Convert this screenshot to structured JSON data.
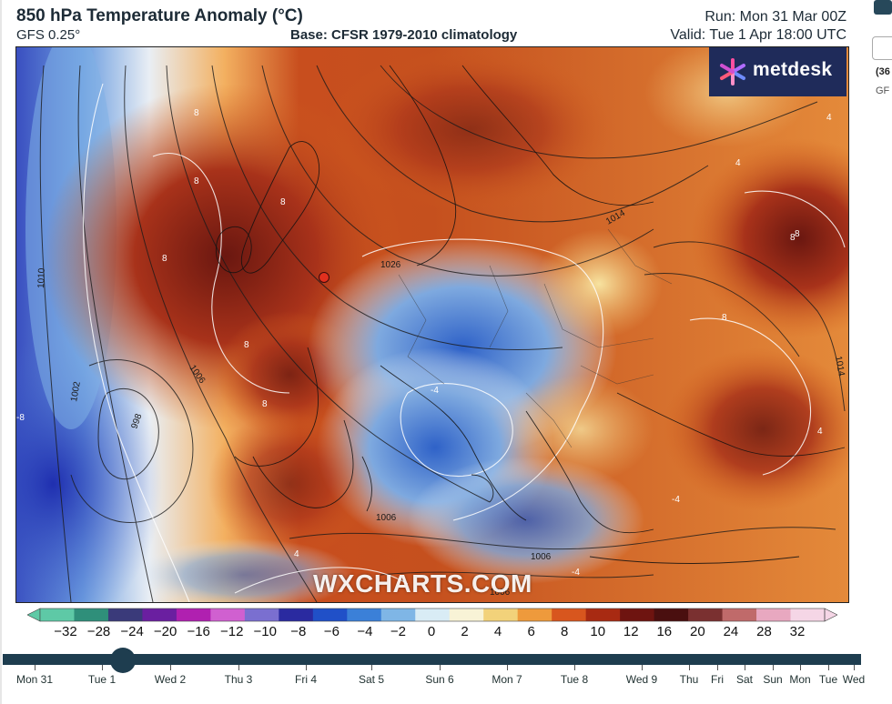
{
  "header": {
    "title": "850 hPa Temperature Anomaly (°C)",
    "model": "GFS 0.25°",
    "base": "Base: CFSR 1979-2010 climatology",
    "run": "Run: Mon 31 Mar 00Z",
    "valid": "Valid: Tue 1 Apr 18:00 UTC"
  },
  "logo": {
    "text": "metdesk",
    "icon": "metdesk-star-icon",
    "color": "#1f2b5a"
  },
  "watermark": "WXCHARTS.COM",
  "map": {
    "isobar_labels": [
      "1010",
      "1002",
      "998",
      "1006",
      "1006",
      "1006",
      "1006",
      "1026",
      "1014",
      "1014"
    ],
    "contour_labels": [
      "8",
      "8",
      "8",
      "8",
      "8",
      "8",
      "8",
      "8",
      "-8",
      "-4",
      "4",
      "4",
      "4",
      "-4",
      "-4",
      "4",
      "8"
    ]
  },
  "scale": {
    "ticks": [
      "−32",
      "−28",
      "−24",
      "−20",
      "−16",
      "−12",
      "−10",
      "−8",
      "−6",
      "−4",
      "−2",
      "0",
      "2",
      "4",
      "6",
      "8",
      "10",
      "12",
      "16",
      "20",
      "24",
      "28",
      "32"
    ],
    "colors": [
      "#5ec9a6",
      "#2f8f7a",
      "#3a3a7a",
      "#6a1fa0",
      "#b020b0",
      "#d060d0",
      "#7a6fd0",
      "#2a2aa0",
      "#2050c8",
      "#3b80d8",
      "#7fb6e6",
      "#d9ecf5",
      "#f8f3d6",
      "#f2d27a",
      "#ee9a3c",
      "#d8561e",
      "#a82a12",
      "#6e1410",
      "#4a0f0f",
      "#7a3030",
      "#c06a6a",
      "#e8a8c0",
      "#f5d6e6"
    ]
  },
  "timeline": {
    "days": [
      "Mon 31",
      "Tue 1",
      "Wed 2",
      "Thu 3",
      "Fri 4",
      "Sat 5",
      "Sun 6",
      "Mon 7",
      "Tue 8",
      "Wed 9",
      "Thu",
      "Fri",
      "Sat",
      "Sun",
      "Mon",
      "Tue",
      "Wed"
    ],
    "position_fraction": 0.14
  },
  "side": {
    "label1": "(36",
    "label2": "GF"
  }
}
